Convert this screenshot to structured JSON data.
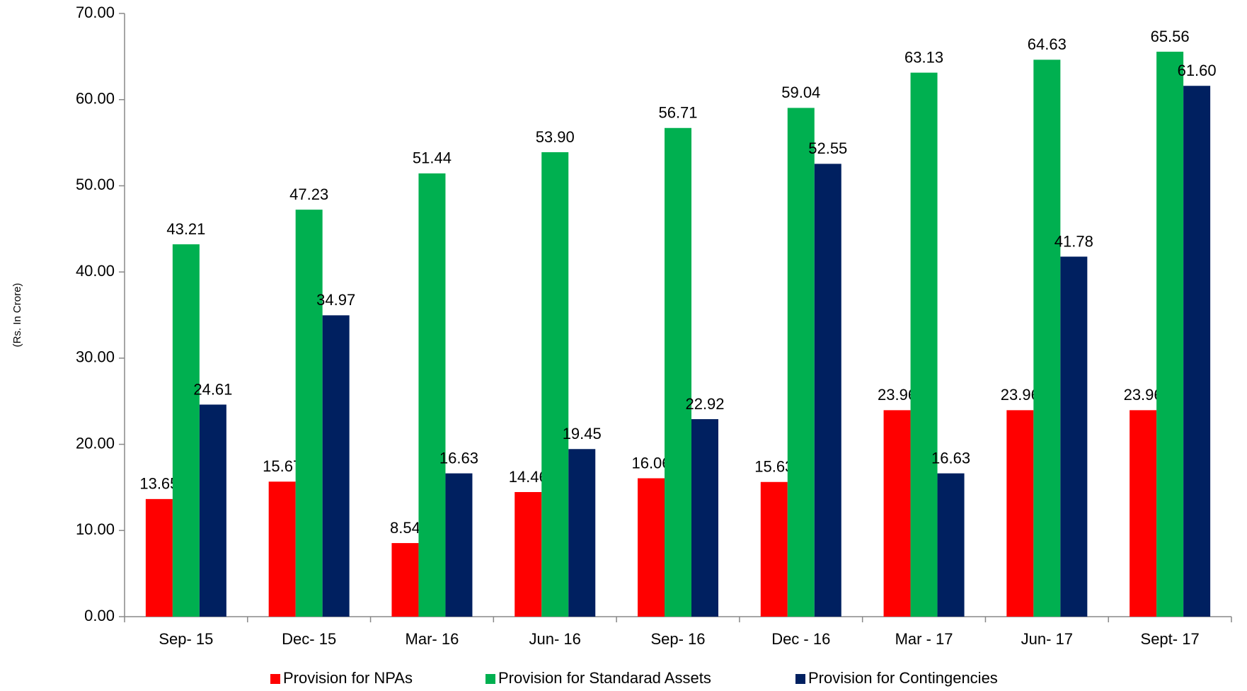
{
  "chart_data": {
    "type": "bar",
    "y_label": "(Rs. In Crore)",
    "categories": [
      "Sep- 15",
      "Dec- 15",
      "Mar- 16",
      "Jun- 16",
      "Sep- 16",
      "Dec - 16",
      "Mar - 17",
      "Jun- 17",
      "Sept- 17"
    ],
    "series": [
      {
        "name": "Provision for NPAs",
        "color": "#ff0000",
        "values": [
          13.65,
          15.67,
          8.54,
          14.46,
          16.06,
          15.63,
          23.96,
          23.96,
          23.96
        ],
        "value_labels": [
          "13.65",
          "15.67",
          "8.54",
          "14.46",
          "16.06",
          "15.63",
          "23.96",
          "23.96",
          "23.96"
        ]
      },
      {
        "name": "Provision for Standarad Assets",
        "color": "#00b050",
        "values": [
          43.21,
          47.23,
          51.44,
          53.9,
          56.71,
          59.04,
          63.13,
          64.63,
          65.56
        ],
        "value_labels": [
          "43.21",
          "47.23",
          "51.44",
          "53.90",
          "56.71",
          "59.04",
          "63.13",
          "64.63",
          "65.56"
        ]
      },
      {
        "name": "Provision for Contingencies",
        "color": "#002060",
        "values": [
          24.61,
          34.97,
          16.63,
          19.45,
          22.92,
          52.55,
          16.63,
          41.78,
          61.6
        ],
        "value_labels": [
          "24.61",
          "34.97",
          "16.63",
          "19.45",
          "22.92",
          "52.55",
          "16.63",
          "41.78",
          "61.60"
        ]
      }
    ],
    "ylim": [
      0,
      70
    ],
    "yticks": [
      {
        "value": 0,
        "label": "0.00"
      },
      {
        "value": 10,
        "label": "10.00"
      },
      {
        "value": 20,
        "label": "20.00"
      },
      {
        "value": 30,
        "label": "30.00"
      },
      {
        "value": 40,
        "label": "40.00"
      },
      {
        "value": 50,
        "label": "50.00"
      },
      {
        "value": 60,
        "label": "60.00"
      },
      {
        "value": 70,
        "label": "70.00"
      }
    ],
    "legend": "bottom"
  }
}
